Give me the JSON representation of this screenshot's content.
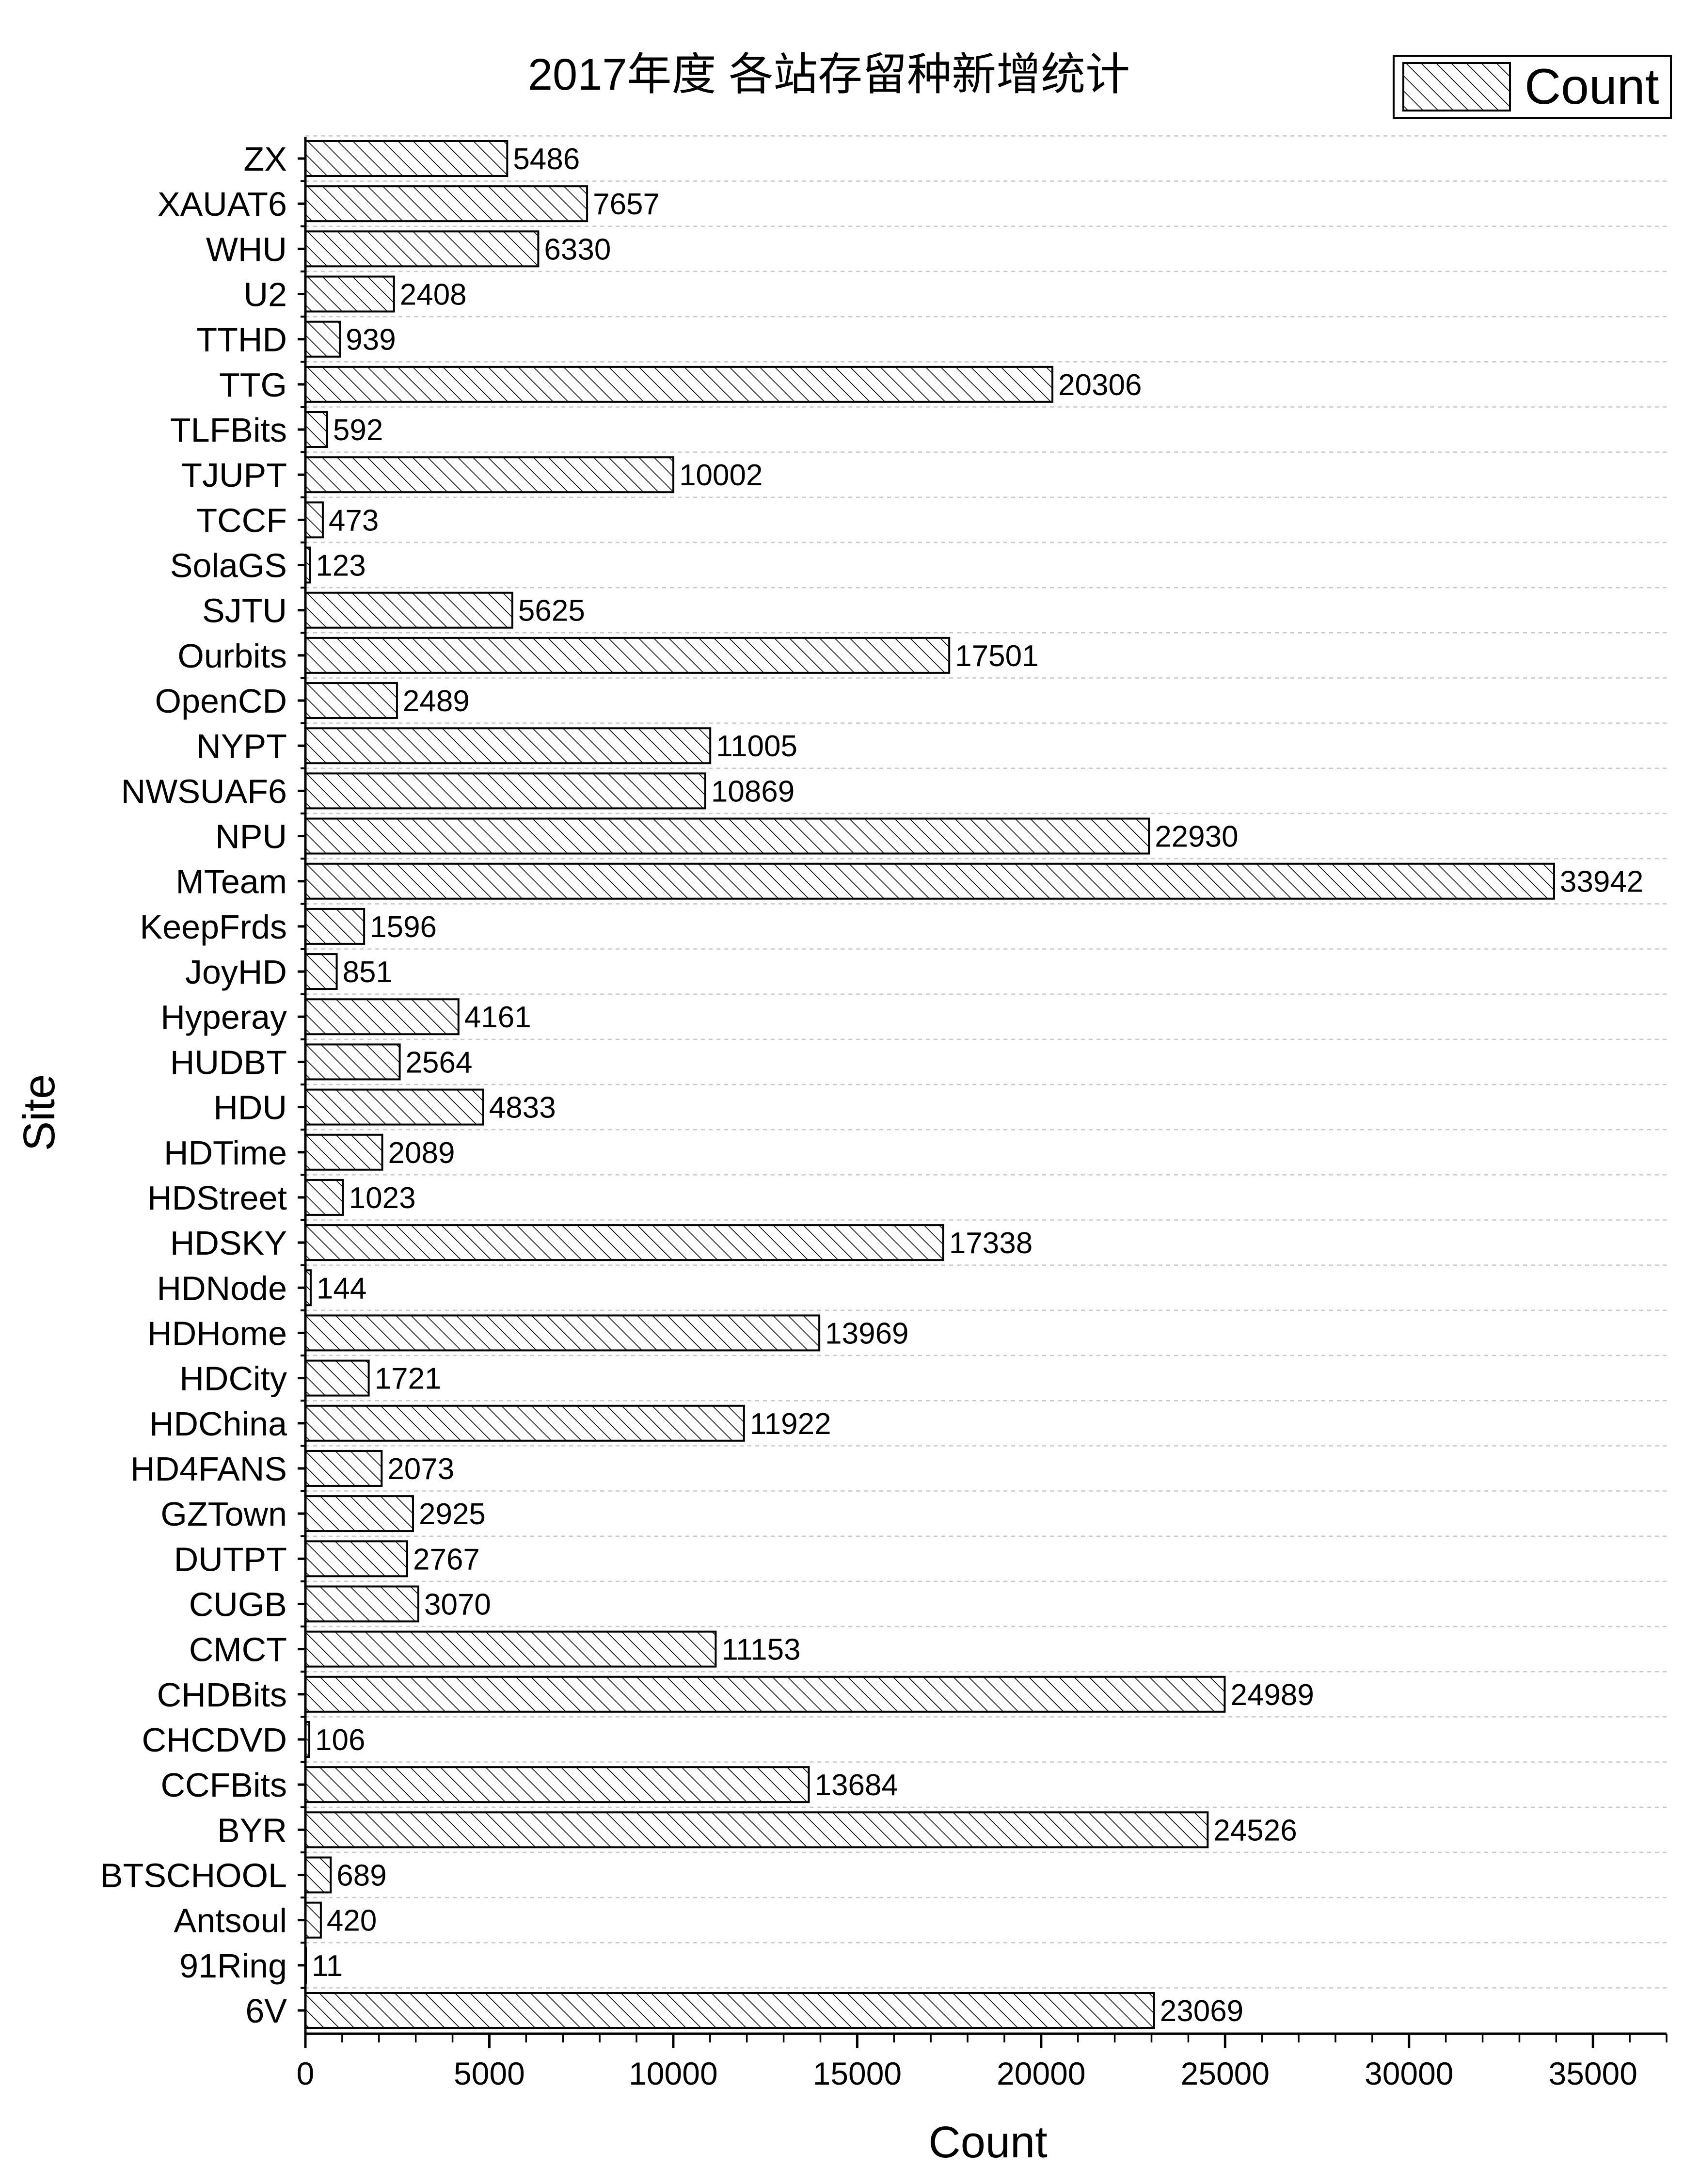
{
  "chart_data": {
    "type": "bar",
    "orientation": "horizontal",
    "title": "2017年度 各站存留种新增统计",
    "xlabel": "Count",
    "ylabel": "Site",
    "xlim": [
      0,
      37000
    ],
    "x_ticks": [
      0,
      5000,
      10000,
      15000,
      20000,
      25000,
      30000,
      35000
    ],
    "grid": "horizontal dotted",
    "legend": {
      "position": "top-right",
      "entries": [
        "Count"
      ]
    },
    "bar_fill": "diagonal hatch",
    "colors": {
      "bar_stroke": "#000000",
      "hatch": "#000000",
      "grid": "#c8c8c8"
    },
    "categories": [
      "ZX",
      "XAUAT6",
      "WHU",
      "U2",
      "TTHD",
      "TTG",
      "TLFBits",
      "TJUPT",
      "TCCF",
      "SolaGS",
      "SJTU",
      "Ourbits",
      "OpenCD",
      "NYPT",
      "NWSUAF6",
      "NPU",
      "MTeam",
      "KeepFrds",
      "JoyHD",
      "Hyperay",
      "HUDBT",
      "HDU",
      "HDTime",
      "HDStreet",
      "HDSKY",
      "HDNode",
      "HDHome",
      "HDCity",
      "HDChina",
      "HD4FANS",
      "GZTown",
      "DUTPT",
      "CUGB",
      "CMCT",
      "CHDBits",
      "CHCDVD",
      "CCFBits",
      "BYR",
      "BTSCHOOL",
      "Antsoul",
      "91Ring",
      "6V"
    ],
    "series": [
      {
        "name": "Count",
        "values": [
          5486,
          7657,
          6330,
          2408,
          939,
          20306,
          592,
          10002,
          473,
          123,
          5625,
          17501,
          2489,
          11005,
          10869,
          22930,
          33942,
          1596,
          851,
          4161,
          2564,
          4833,
          2089,
          1023,
          17338,
          144,
          13969,
          1721,
          11922,
          2073,
          2925,
          2767,
          3070,
          11153,
          24989,
          106,
          13684,
          24526,
          689,
          420,
          11,
          23069
        ]
      }
    ]
  }
}
